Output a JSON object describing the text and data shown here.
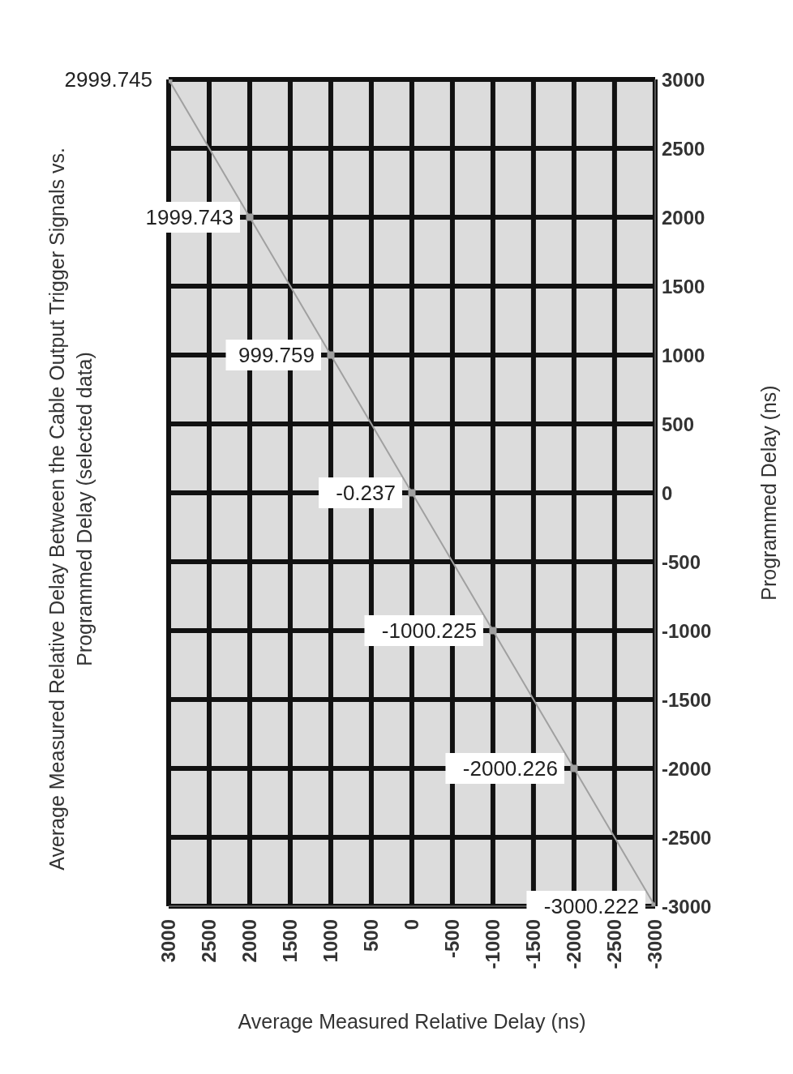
{
  "chart_data": {
    "type": "scatter",
    "title": "Average Measured Relative Delay Between the Cable Output Trigger Signals vs. Programmed Delay (selected data)",
    "xlabel": "Average Measured Relative Delay (ns)",
    "ylabel": "Programmed Delay (ns)",
    "x": [
      2999.745,
      1999.743,
      999.759,
      -0.237,
      -1000.225,
      -2000.226,
      -3000.222
    ],
    "values": [
      3000,
      2000,
      1000,
      0,
      -1000,
      -2000,
      -3000
    ],
    "annotations": [
      {
        "text": "2999.745",
        "x": 2999.745,
        "y": 3000
      },
      {
        "text": "1999.743",
        "x": 1999.743,
        "y": 2000
      },
      {
        "text": "999.759",
        "x": 999.759,
        "y": 1000
      },
      {
        "text": "-0.237",
        "x": -0.237,
        "y": 0
      },
      {
        "text": "-1000.225",
        "x": -1000.225,
        "y": -1000
      },
      {
        "text": "-2000.226",
        "x": -2000.226,
        "y": -2000
      },
      {
        "text": "-3000.222",
        "x": -3000.222,
        "y": -3000
      }
    ],
    "color": "#a0a0a0",
    "marker": "square",
    "line_style": "solid",
    "xlim": [
      3000,
      -3001
    ],
    "xticks": [
      3000,
      2500,
      2000,
      1500,
      1000,
      500,
      0,
      -500,
      -1000,
      -1500,
      -2000,
      -2500,
      -3000
    ],
    "ylim": [
      -3000,
      3000
    ],
    "yticks": [
      -3000,
      -2500,
      -2000,
      -1500,
      -1000,
      -500,
      0,
      500,
      1000,
      1500,
      2000,
      2500,
      3000
    ],
    "grid": true
  }
}
